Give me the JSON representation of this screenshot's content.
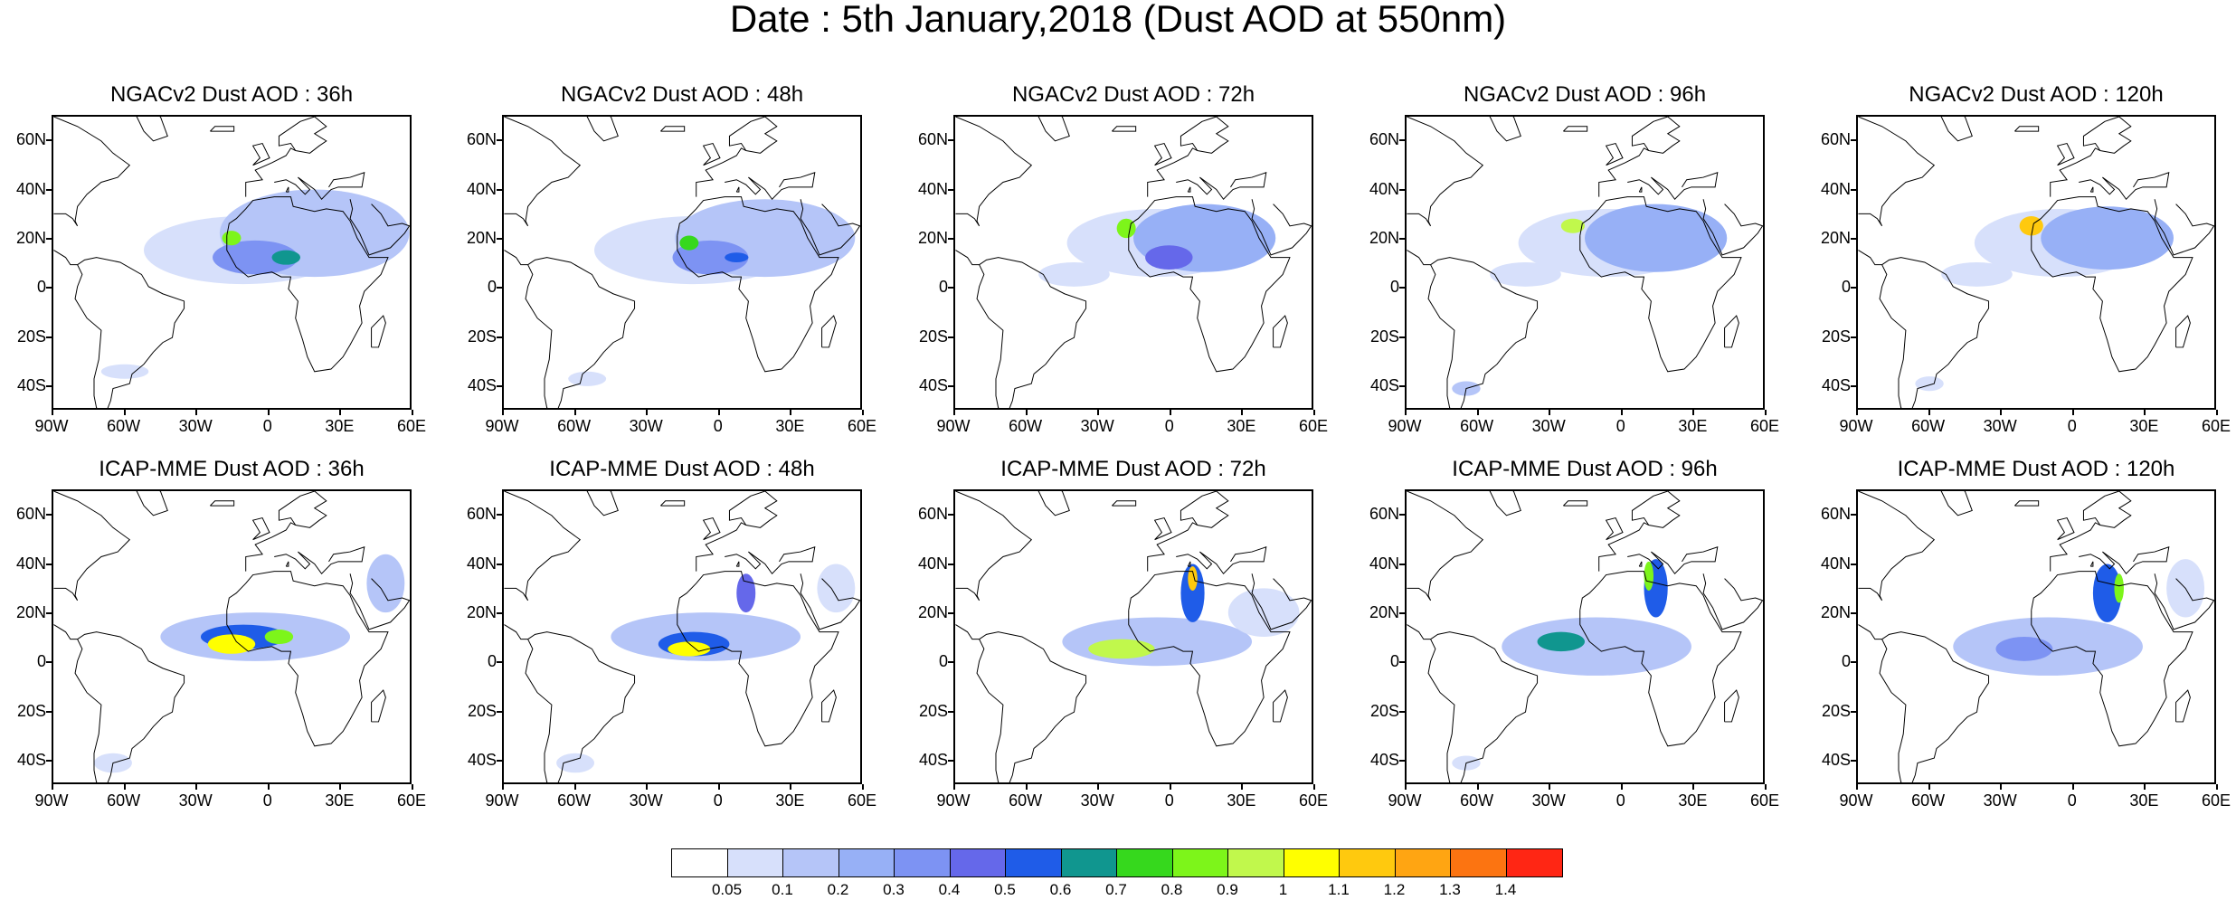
{
  "title": "Date : 5th January,2018 (Dust AOD at 550nm)",
  "lat_labels": [
    "60N",
    "40N",
    "20N",
    "0",
    "20S",
    "40S"
  ],
  "lon_labels": [
    "90W",
    "60W",
    "30W",
    "0",
    "30E",
    "60E"
  ],
  "panels": [
    {
      "title": "NGACv2 Dust AOD : 36h",
      "model": "NGACv2",
      "lead": "36h"
    },
    {
      "title": "NGACv2 Dust AOD : 48h",
      "model": "NGACv2",
      "lead": "48h"
    },
    {
      "title": "NGACv2 Dust AOD : 72h",
      "model": "NGACv2",
      "lead": "72h"
    },
    {
      "title": "NGACv2 Dust AOD : 96h",
      "model": "NGACv2",
      "lead": "96h"
    },
    {
      "title": "NGACv2 Dust AOD : 120h",
      "model": "NGACv2",
      "lead": "120h"
    },
    {
      "title": "ICAP-MME Dust AOD : 36h",
      "model": "ICAP-MME",
      "lead": "36h"
    },
    {
      "title": "ICAP-MME Dust AOD : 48h",
      "model": "ICAP-MME",
      "lead": "48h"
    },
    {
      "title": "ICAP-MME Dust AOD : 72h",
      "model": "ICAP-MME",
      "lead": "72h"
    },
    {
      "title": "ICAP-MME Dust AOD : 96h",
      "model": "ICAP-MME",
      "lead": "96h"
    },
    {
      "title": "ICAP-MME Dust AOD : 120h",
      "model": "ICAP-MME",
      "lead": "120h"
    }
  ],
  "colorbar": {
    "colors": [
      "#ffffff",
      "#d7e0fb",
      "#b5c5f8",
      "#97b0f6",
      "#7d93f3",
      "#6568ea",
      "#1f5ce8",
      "#10968f",
      "#36d81d",
      "#7df51a",
      "#c1f84c",
      "#ffff00",
      "#ffc90e",
      "#ffa512",
      "#fc7411",
      "#ff2614"
    ],
    "labels": [
      "0.05",
      "0.1",
      "0.2",
      "0.3",
      "0.4",
      "0.5",
      "0.6",
      "0.7",
      "0.8",
      "0.9",
      "1",
      "1.1",
      "1.2",
      "1.3",
      "1.4"
    ]
  }
}
